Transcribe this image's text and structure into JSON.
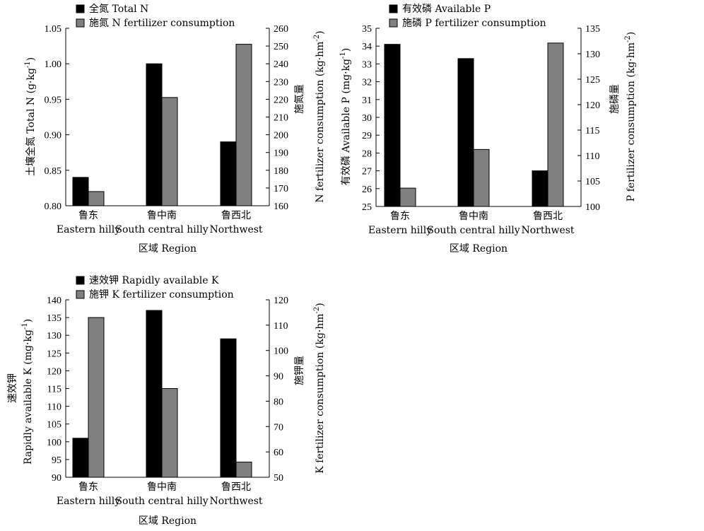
{
  "chart_data": [
    {
      "type": "bar",
      "categories": [
        {
          "zh": "鲁东",
          "en": "Eastern hilly"
        },
        {
          "zh": "鲁中南",
          "en": "South central hilly"
        },
        {
          "zh": "鲁西北",
          "en": "Northwest"
        }
      ],
      "xlabel": "区域 Region",
      "ylabel": "土壤全氮 Total N (g·kg",
      "ylabel_sup": "-1",
      "ylabel_tail": ")",
      "y2label_top": "施氮量",
      "y2label": "N fertilizer consumption (kg·hm",
      "y2label_sup": "-2",
      "y2label_tail": ")",
      "ylim": [
        0.8,
        1.05
      ],
      "yticks": [
        "0.80",
        "0.85",
        "0.90",
        "0.95",
        "1.00",
        "1.05"
      ],
      "y2lim": [
        160,
        260
      ],
      "y2ticks": [
        "160",
        "170",
        "180",
        "190",
        "200",
        "210",
        "220",
        "230",
        "240",
        "250",
        "260"
      ],
      "series": [
        {
          "name": "全氮 Total N",
          "axis": "left",
          "color": "#000000",
          "values": [
            0.84,
            1.0,
            0.89
          ]
        },
        {
          "name": "施氮 N fertilizer consumption",
          "axis": "right",
          "color": "#808080",
          "values": [
            168,
            221,
            251
          ]
        }
      ]
    },
    {
      "type": "bar",
      "categories": [
        {
          "zh": "鲁东",
          "en": "Eastern hilly"
        },
        {
          "zh": "鲁中南",
          "en": "South central hilly"
        },
        {
          "zh": "鲁西北",
          "en": "Northwest"
        }
      ],
      "xlabel": "区域 Region",
      "ylabel": "有效磷 Available P (mg·kg",
      "ylabel_sup": "-1",
      "ylabel_tail": ")",
      "y2label_top": "施磷量",
      "y2label": "P fertilizer consumption (kg·hm",
      "y2label_sup": "-2",
      "y2label_tail": ")",
      "ylim": [
        25,
        35
      ],
      "yticks": [
        "25",
        "26",
        "27",
        "28",
        "29",
        "30",
        "31",
        "32",
        "33",
        "34",
        "35"
      ],
      "y2lim": [
        100,
        135
      ],
      "y2ticks": [
        "100",
        "105",
        "110",
        "115",
        "120",
        "125",
        "130",
        "135"
      ],
      "series": [
        {
          "name": "有效磷 Available P",
          "axis": "left",
          "color": "#000000",
          "values": [
            34.1,
            33.3,
            27.0
          ]
        },
        {
          "name": "施磷 P fertilizer consumption",
          "axis": "right",
          "color": "#808080",
          "values": [
            103.6,
            111.2,
            132.1
          ]
        }
      ]
    },
    {
      "type": "bar",
      "categories": [
        {
          "zh": "鲁东",
          "en": "Eastern hilly"
        },
        {
          "zh": "鲁中南",
          "en": "South central hilly"
        },
        {
          "zh": "鲁西北",
          "en": "Northwest"
        }
      ],
      "xlabel": "区域 Region",
      "ylabel_top": "速效钾",
      "ylabel": "Rapidly available K (mg·kg",
      "ylabel_sup": "-1",
      "ylabel_tail": ")",
      "y2label_top": "施钾量",
      "y2label": "K fertilizer consumption (kg·hm",
      "y2label_sup": "-2",
      "y2label_tail": ")",
      "ylim": [
        90,
        140
      ],
      "yticks": [
        "90",
        "95",
        "100",
        "105",
        "110",
        "115",
        "120",
        "125",
        "130",
        "135",
        "140"
      ],
      "y2lim": [
        50,
        120
      ],
      "y2ticks": [
        "50",
        "60",
        "70",
        "80",
        "90",
        "100",
        "110",
        "120"
      ],
      "series": [
        {
          "name": "速效钾 Rapidly available K",
          "axis": "left",
          "color": "#000000",
          "values": [
            101,
            137,
            129
          ]
        },
        {
          "name": "施钾 K fertilizer consumption",
          "axis": "right",
          "color": "#808080",
          "values": [
            113,
            85,
            56
          ]
        }
      ]
    }
  ]
}
